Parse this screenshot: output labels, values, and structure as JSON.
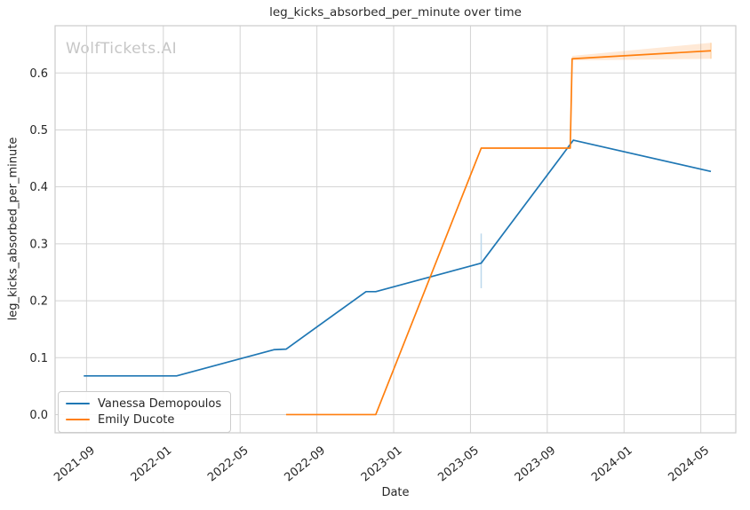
{
  "title": "leg_kicks_absorbed_per_minute over time",
  "watermark": "WolfTickets.AI",
  "axes": {
    "xlabel": "Date",
    "ylabel": "leg_kicks_absorbed_per_minute"
  },
  "legend": {
    "items": [
      {
        "label": "Vanessa Demopoulos",
        "color": "#1f77b4"
      },
      {
        "label": "Emily Ducote",
        "color": "#ff7f0e"
      }
    ]
  },
  "colors": {
    "grid": "#d3d3d3",
    "spine": "#cccccc",
    "text": "#262626",
    "watermark": "#c6c6c6",
    "blue": "#1f77b4",
    "orange": "#ff7f0e",
    "error_blue": "#bdd8ec",
    "error_orange": "#ffd5ab"
  },
  "chart_data": {
    "type": "line",
    "title": "leg_kicks_absorbed_per_minute over time",
    "xlabel": "Date",
    "ylabel": "leg_kicks_absorbed_per_minute",
    "grid": true,
    "legend_position": "lower left",
    "x_ticks": [
      "2021-09",
      "2022-01",
      "2022-05",
      "2022-09",
      "2023-01",
      "2023-05",
      "2023-09",
      "2024-01",
      "2024-05"
    ],
    "y_ticks": [
      "0.0",
      "0.1",
      "0.2",
      "0.3",
      "0.4",
      "0.5",
      "0.6"
    ],
    "xlim": [
      "2021-07-12",
      "2024-06-26"
    ],
    "ylim": [
      -0.032,
      0.683
    ],
    "series": [
      {
        "name": "Vanessa Demopoulos",
        "color": "#1f77b4",
        "error_color": "#bdd8ec",
        "points": [
          [
            "2021-08-27",
            0.068
          ],
          [
            "2022-01-22",
            0.068
          ],
          [
            "2022-06-24",
            0.114
          ],
          [
            "2022-07-13",
            0.115
          ],
          [
            "2022-11-18",
            0.216
          ],
          [
            "2022-12-03",
            0.216
          ],
          [
            "2023-05-18",
            0.266
          ],
          [
            "2023-10-12",
            0.482
          ],
          [
            "2024-05-17",
            0.427
          ]
        ],
        "error_bars": [
          {
            "x": "2023-05-18",
            "lo": 0.222,
            "hi": 0.318
          }
        ]
      },
      {
        "name": "Emily Ducote",
        "color": "#ff7f0e",
        "error_color": "#ffd5ab",
        "points": [
          [
            "2022-07-13",
            0.0
          ],
          [
            "2022-12-03",
            0.0
          ],
          [
            "2023-05-18",
            0.468
          ],
          [
            "2023-10-07",
            0.468
          ],
          [
            "2023-10-10",
            0.625
          ],
          [
            "2024-05-17",
            0.639
          ]
        ],
        "error_bars": [
          {
            "x": "2024-05-17",
            "lo": 0.625,
            "hi": 0.653
          }
        ],
        "ci_band": [
          {
            "x": "2023-10-10",
            "lo": 0.622,
            "hi": 0.63
          },
          {
            "x": "2024-05-17",
            "lo": 0.625,
            "hi": 0.653
          }
        ]
      }
    ]
  }
}
